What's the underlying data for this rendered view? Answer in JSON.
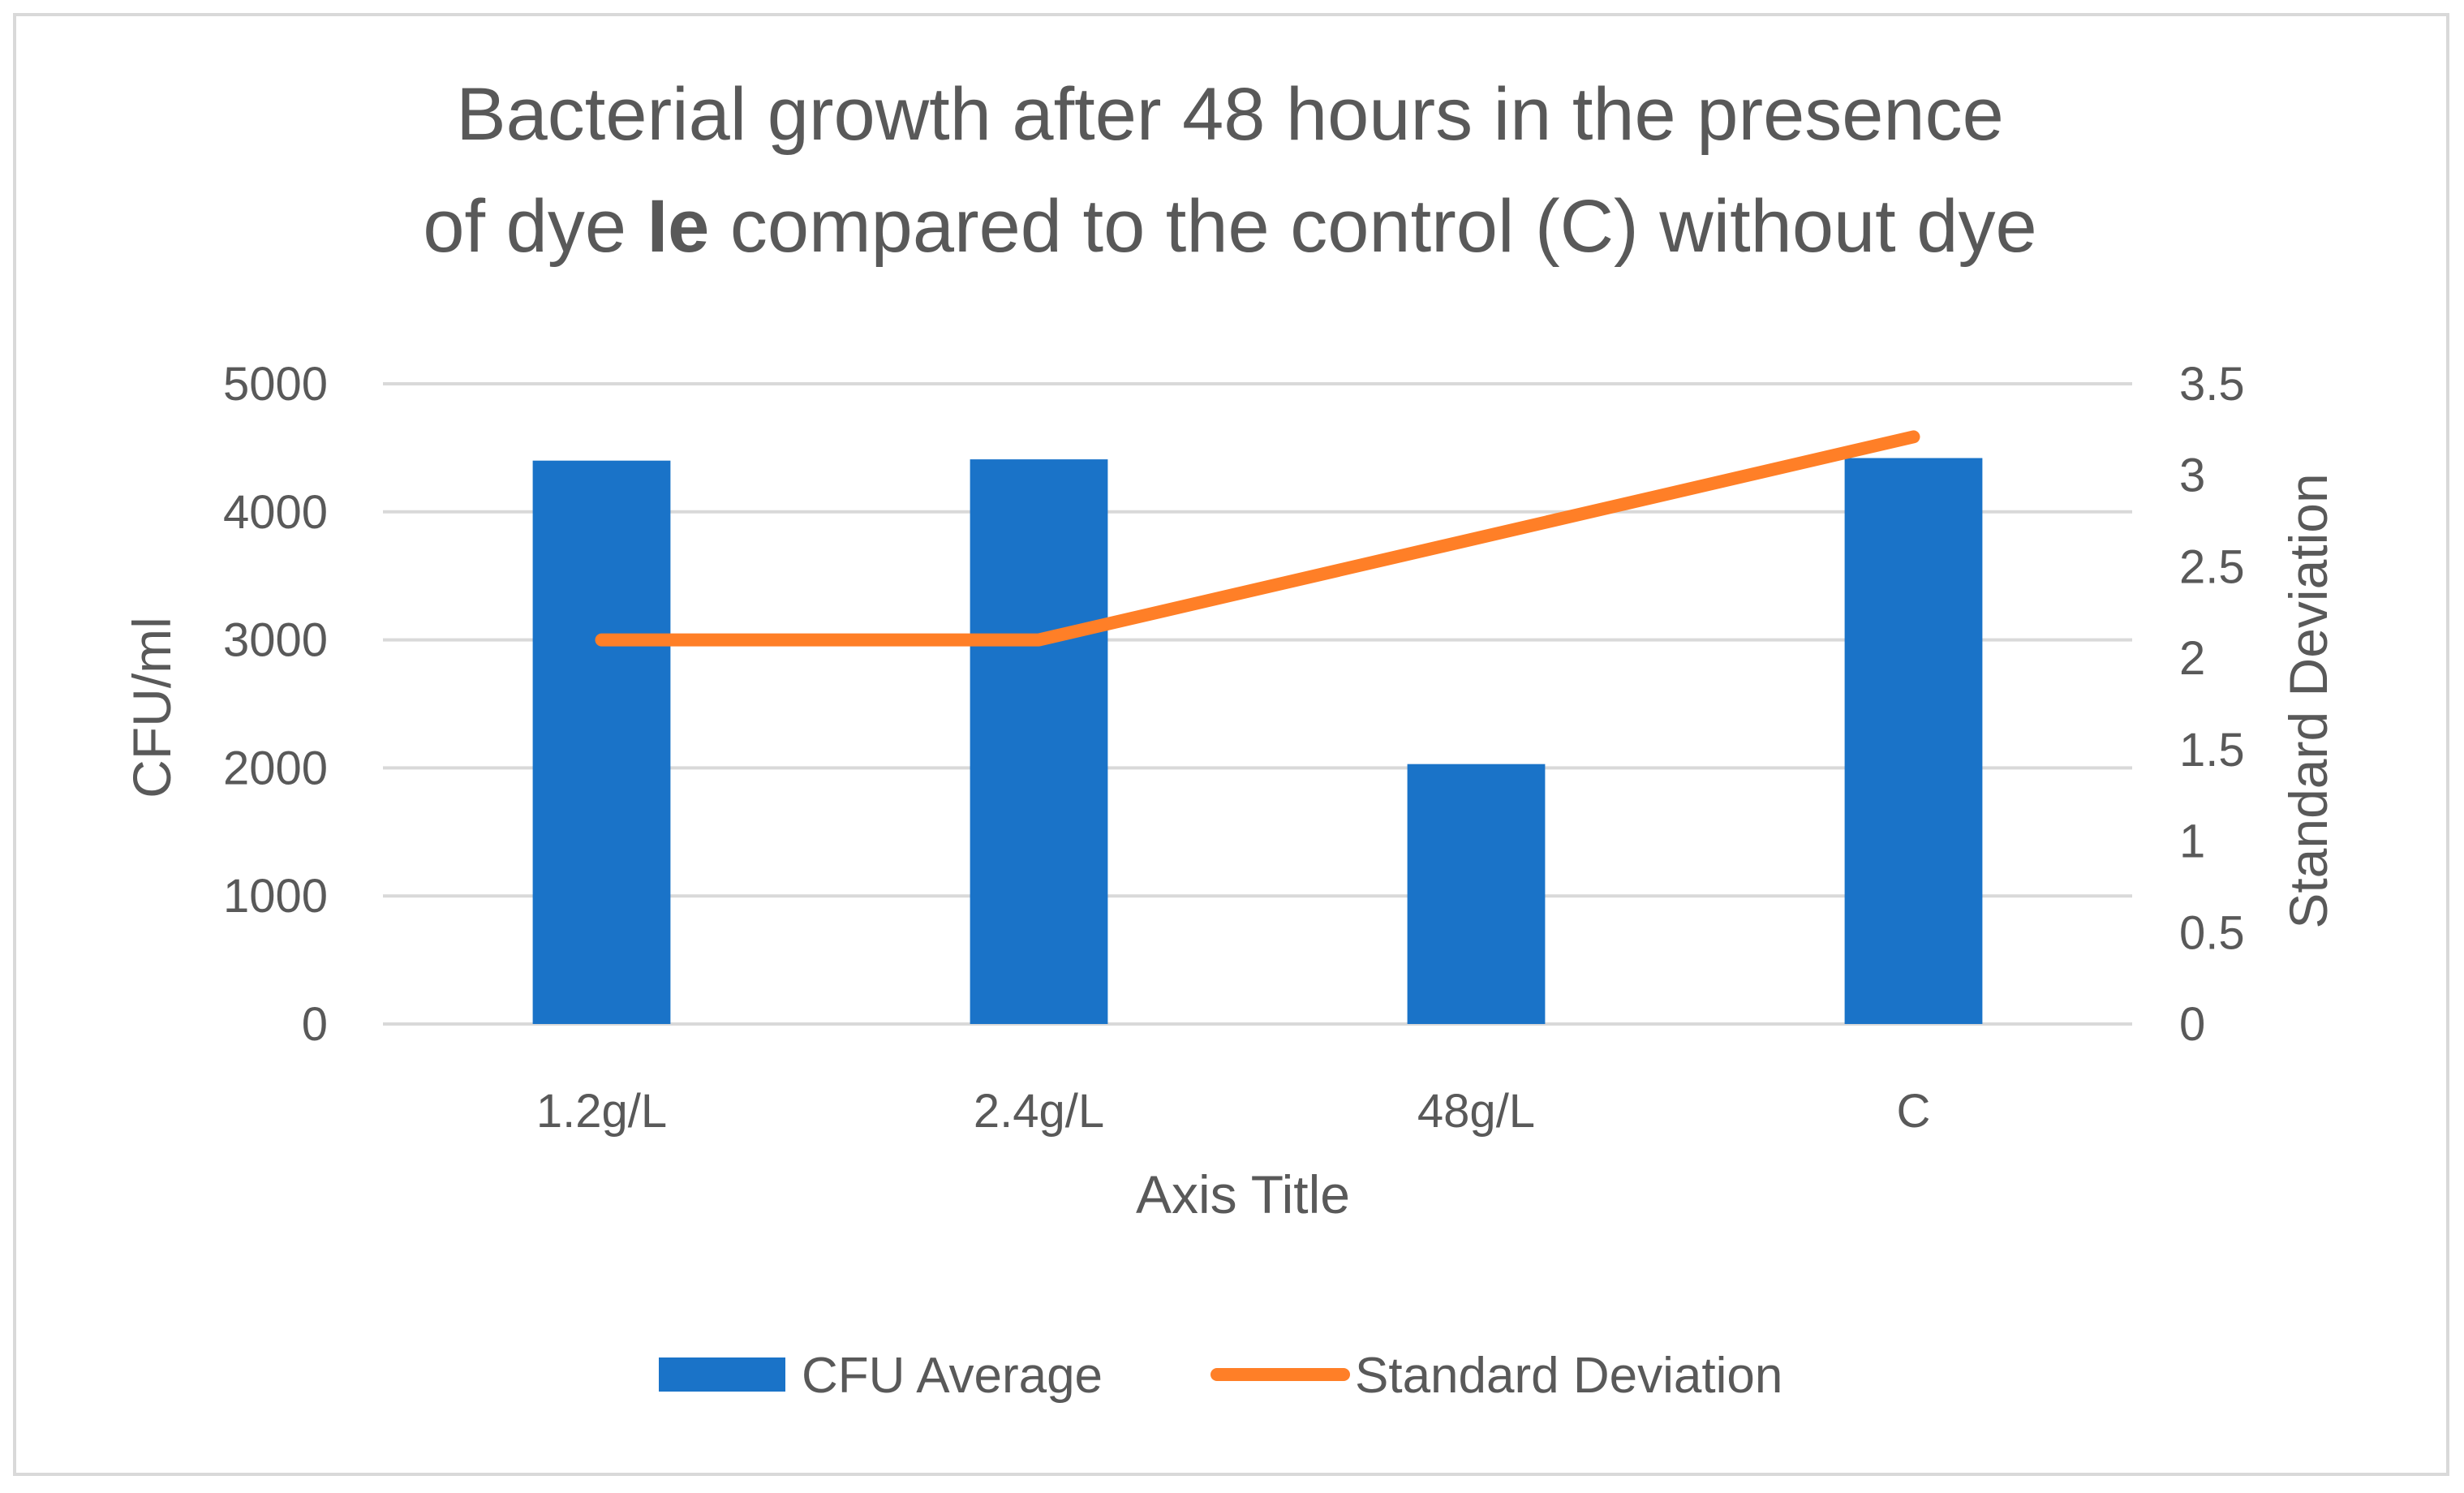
{
  "chart_data": {
    "type": "bar",
    "title": {
      "line1": "Bacterial growth after 48 hours in the presence",
      "line2_part1": "of dye ",
      "line2_bold": "Ie",
      "line2_part2": " compared to the control (C) without dye"
    },
    "categories": [
      "1.2g/L",
      "2.4g/L",
      "48g/L",
      "C"
    ],
    "series": [
      {
        "name": "CFU Average",
        "type": "bar",
        "axis": "left",
        "color": "#1a73c8",
        "values": [
          4400,
          4410,
          2030,
          4420
        ]
      },
      {
        "name": "Standard Deviation",
        "type": "line",
        "axis": "right",
        "color": "#ff7f27",
        "values": [
          2.1,
          2.1,
          null,
          3.21
        ]
      }
    ],
    "xlabel": "Axis Title",
    "ylabel": "CFU/ml",
    "y2label": "Standard Deviation",
    "ylim": [
      0,
      5000
    ],
    "yticks": [
      "0",
      "1000",
      "2000",
      "3000",
      "4000",
      "5000"
    ],
    "y2lim": [
      0,
      3.5
    ],
    "y2ticks": [
      "0",
      "0.5",
      "1",
      "1.5",
      "2",
      "2.5",
      "3",
      "3.5"
    ],
    "grid": true,
    "legend_position": "bottom"
  }
}
